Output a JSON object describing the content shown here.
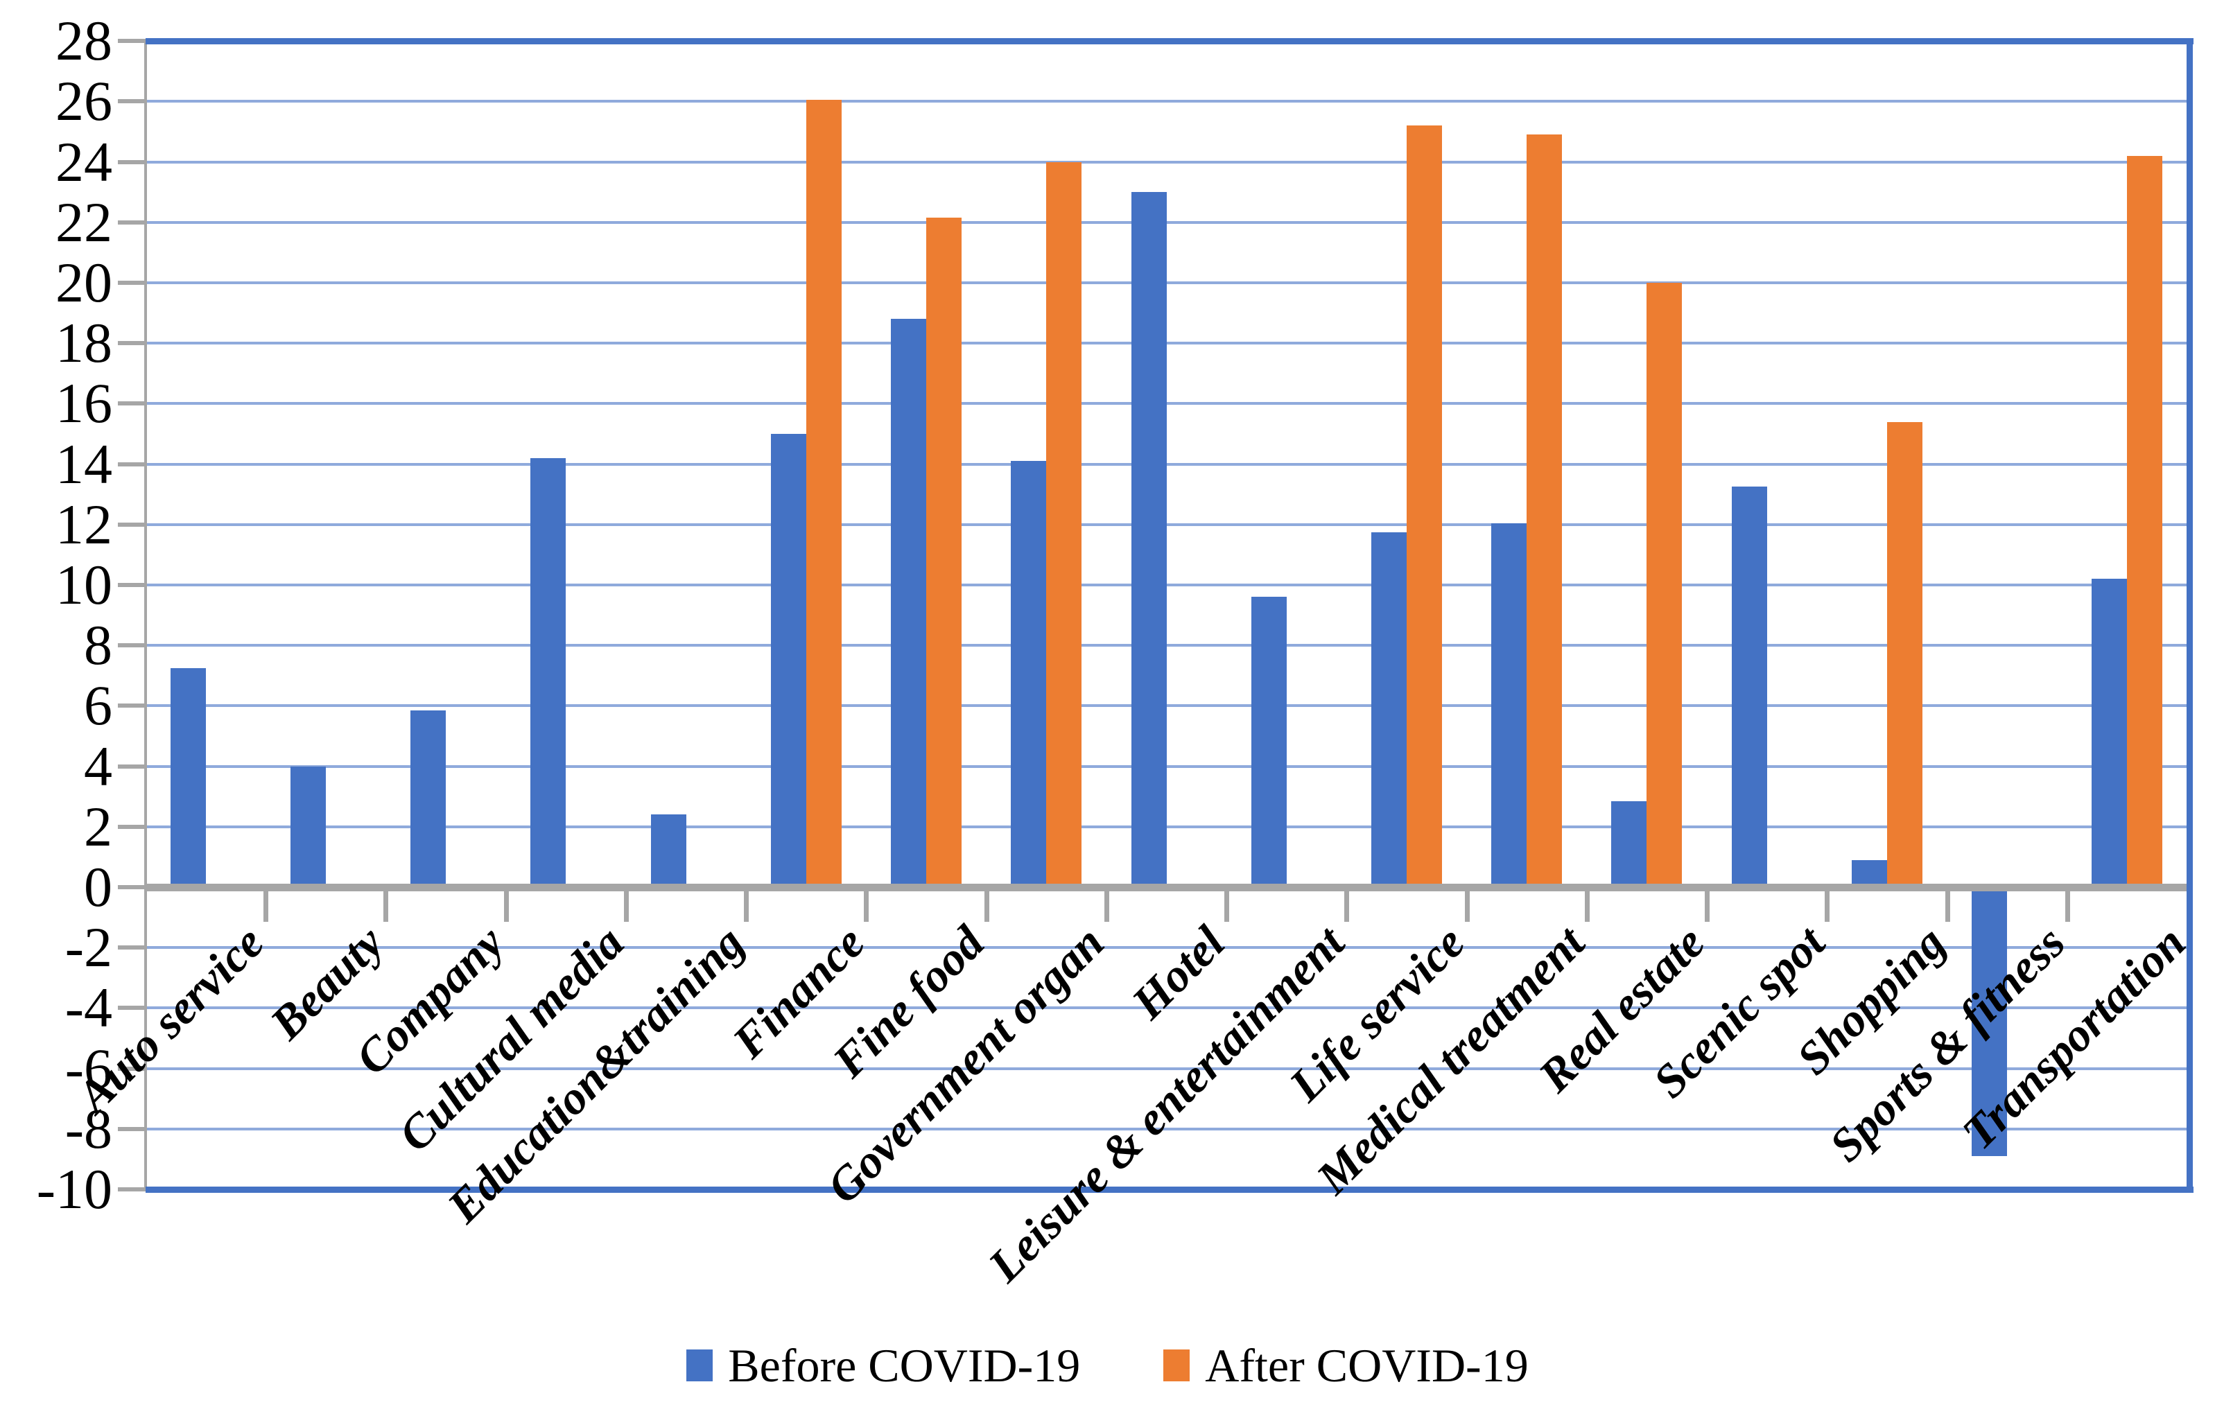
{
  "chart_data": {
    "type": "bar",
    "title": "",
    "xlabel": "",
    "ylabel": "",
    "categories": [
      "Auto service",
      "Beauty",
      "Company",
      "Cultural media",
      "Education&training",
      "Finance",
      "Fine food",
      "Government organ",
      "Hotel",
      "Leisure & entertainment",
      "Life service",
      "Medical treatment",
      "Real estate",
      "Scenic spot",
      "Shopping",
      "Sports & fitness",
      "Transportation"
    ],
    "series": [
      {
        "name": "Before COVID-19",
        "color": "#4472C4",
        "values": [
          7.25,
          4,
          5.85,
          14.2,
          2.4,
          15,
          18.8,
          14.1,
          23,
          9.6,
          11.75,
          12.05,
          2.85,
          13.25,
          0.9,
          -8.9,
          10.2
        ]
      },
      {
        "name": "After COVID-19",
        "color": "#ED7D31",
        "values": [
          null,
          null,
          null,
          null,
          null,
          26.05,
          22.15,
          24,
          null,
          null,
          25.2,
          24.9,
          20,
          null,
          15.4,
          null,
          24.2
        ]
      }
    ],
    "ylim": [
      -10,
      28
    ],
    "ytick_step": 2,
    "y_tick_labels": [
      "28",
      "26",
      "24",
      "22",
      "20",
      "18",
      "16",
      "14",
      "12",
      "10",
      "8",
      "6",
      "4",
      "2",
      "0",
      "-2",
      "-4",
      "-6",
      "-8",
      "-10"
    ],
    "grid": true,
    "legend_position": "bottom"
  },
  "colors": {
    "gridline": "#8FAADC",
    "plot_frame": "#4472C4",
    "axis": "#A6A6A6",
    "text": "#000000",
    "background": "#FFFFFF"
  }
}
